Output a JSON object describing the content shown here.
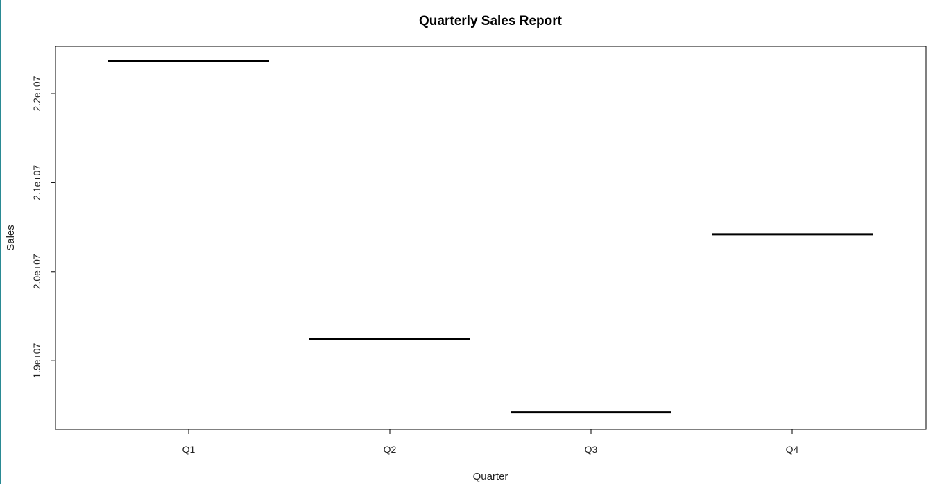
{
  "chart_data": {
    "type": "bar",
    "title": "Quarterly Sales Report",
    "xlabel": "Quarter",
    "ylabel": "Sales",
    "categories": [
      "Q1",
      "Q2",
      "Q3",
      "Q4"
    ],
    "values": [
      22370000,
      19240000,
      18420000,
      20420000
    ],
    "ylim": [
      18230000,
      22530000
    ],
    "yticks": [
      19000000,
      20000000,
      21000000,
      22000000
    ],
    "ytick_labels": [
      "1.9e+07",
      "2.0e+07",
      "2.1e+07",
      "2.2e+07"
    ],
    "grid": false,
    "legend": "none",
    "style": "crossbar",
    "colors": {
      "line": "#000000",
      "frame": "#000000",
      "edge_accent": "#2a8a94"
    }
  }
}
